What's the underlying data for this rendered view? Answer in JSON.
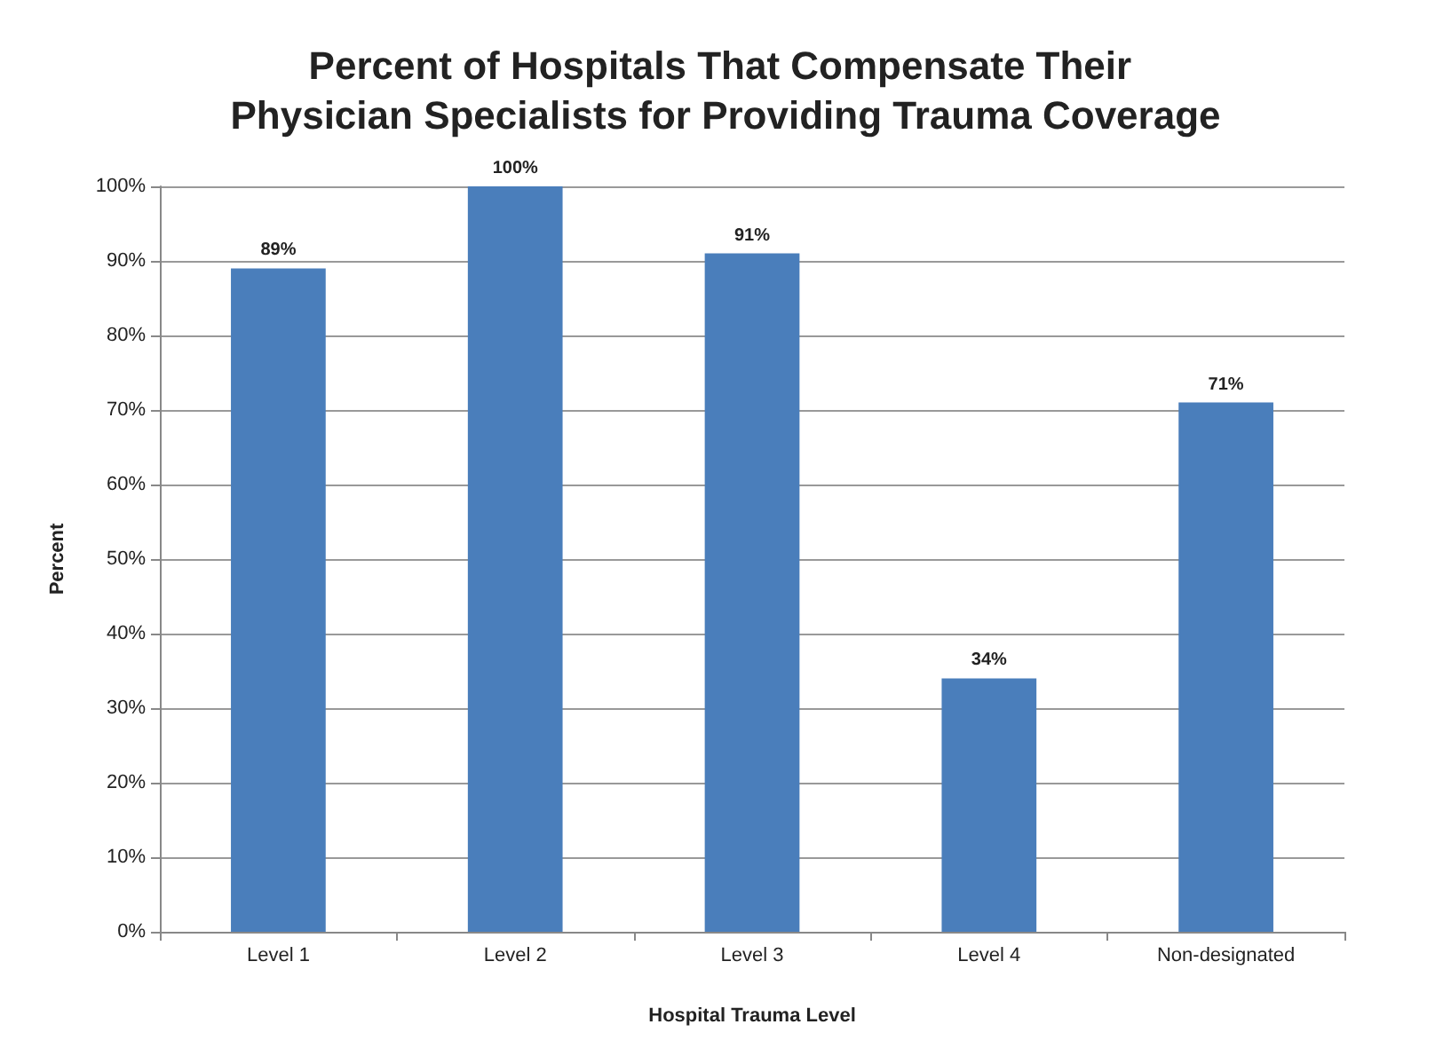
{
  "chart_data": {
    "type": "bar",
    "title": "Percent of Hospitals That Compensate Their Physician Specialists for Providing Trauma Coverage",
    "xlabel": "Hospital Trauma Level",
    "ylabel": "Percent",
    "categories": [
      "Level 1",
      "Level 2",
      "Level 3",
      "Level 4",
      "Non-designated"
    ],
    "values": [
      89,
      100,
      91,
      34,
      71
    ],
    "color": "#4a7ebb",
    "value_labels": [
      "89%",
      "100%",
      "91%",
      "34%",
      "71%"
    ],
    "ylim": [
      0,
      100
    ],
    "yticks": [
      {
        "value": 0,
        "label": "0%"
      },
      {
        "value": 10,
        "label": "10%"
      },
      {
        "value": 20,
        "label": "20%"
      },
      {
        "value": 30,
        "label": "30%"
      },
      {
        "value": 40,
        "label": "40%"
      },
      {
        "value": 50,
        "label": "50%"
      },
      {
        "value": 60,
        "label": "60%"
      },
      {
        "value": 70,
        "label": "70%"
      },
      {
        "value": 80,
        "label": "80%"
      },
      {
        "value": 90,
        "label": "90%"
      },
      {
        "value": 100,
        "label": "100%"
      }
    ],
    "grid": "y"
  }
}
